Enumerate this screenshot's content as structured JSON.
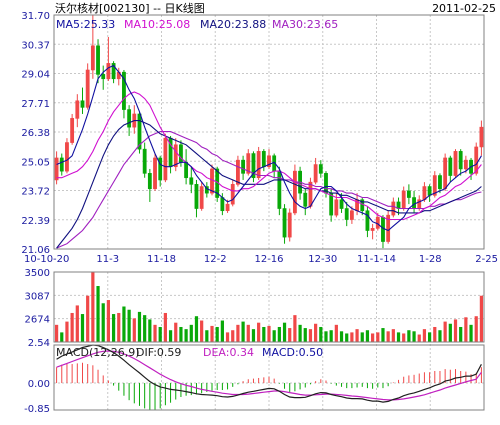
{
  "chart_data": {
    "type": "candlestick",
    "title": "沃尔核材[002130] -- 日K线图",
    "date": "2011-02-25",
    "colors": {
      "up": "#f04848",
      "down": "#08a808",
      "ma5": "#1010a0",
      "ma10": "#d010d0",
      "ma20": "#101080",
      "ma30": "#a020c0",
      "dif": "#202020",
      "dea": "#c020c0",
      "grid": "#c8c8c8",
      "axis": "#1a1aa0"
    },
    "price_panel": {
      "ylim": [
        21.06,
        31.7
      ],
      "yticks": [
        "31.70",
        "30.37",
        "29.04",
        "27.71",
        "26.38",
        "25.05",
        "23.72",
        "22.39",
        "21.06"
      ],
      "xticks": [
        "10-10-20",
        "11-3",
        "11-18",
        "12-2",
        "12-16",
        "12-30",
        "11-1-14",
        "1-28",
        "2-25"
      ],
      "legend": [
        {
          "key": "ma5",
          "label": "MA5:25.33"
        },
        {
          "key": "ma10",
          "label": "MA10:25.08"
        },
        {
          "key": "ma20",
          "label": "MA20:23.88"
        },
        {
          "key": "ma30",
          "label": "MA30:23.65"
        }
      ],
      "candles": [
        [
          24.2,
          25.5,
          24.0,
          25.2
        ],
        [
          25.2,
          25.4,
          24.4,
          24.6
        ],
        [
          24.6,
          26.1,
          24.5,
          25.9
        ],
        [
          25.9,
          27.2,
          25.8,
          27.0
        ],
        [
          27.0,
          28.1,
          26.6,
          27.8
        ],
        [
          27.8,
          28.4,
          27.2,
          27.5
        ],
        [
          27.5,
          29.5,
          27.4,
          29.2
        ],
        [
          29.2,
          31.7,
          28.8,
          30.3
        ],
        [
          30.3,
          30.6,
          28.6,
          29.0
        ],
        [
          29.0,
          29.4,
          28.3,
          28.8
        ],
        [
          28.8,
          30.7,
          28.7,
          29.5
        ],
        [
          29.5,
          29.6,
          28.6,
          28.8
        ],
        [
          28.8,
          29.3,
          28.5,
          29.1
        ],
        [
          29.1,
          29.2,
          27.0,
          27.4
        ],
        [
          27.4,
          27.6,
          26.2,
          26.6
        ],
        [
          26.6,
          27.6,
          26.3,
          27.2
        ],
        [
          27.2,
          27.3,
          25.4,
          25.6
        ],
        [
          25.6,
          25.9,
          24.3,
          24.5
        ],
        [
          24.5,
          24.7,
          23.2,
          23.8
        ],
        [
          23.8,
          25.4,
          23.7,
          25.2
        ],
        [
          25.2,
          25.3,
          23.9,
          24.2
        ],
        [
          24.2,
          26.3,
          24.1,
          26.1
        ],
        [
          26.1,
          26.2,
          24.5,
          24.8
        ],
        [
          24.8,
          26.1,
          24.6,
          25.8
        ],
        [
          25.8,
          26.0,
          24.8,
          25.0
        ],
        [
          25.0,
          25.6,
          24.0,
          24.3
        ],
        [
          24.3,
          24.8,
          23.6,
          24.0
        ],
        [
          24.0,
          24.2,
          22.5,
          22.9
        ],
        [
          22.9,
          24.1,
          22.8,
          23.9
        ],
        [
          23.9,
          24.1,
          23.4,
          23.6
        ],
        [
          23.6,
          24.9,
          23.5,
          24.7
        ],
        [
          24.7,
          24.8,
          23.2,
          23.4
        ],
        [
          23.4,
          23.6,
          22.6,
          22.8
        ],
        [
          22.8,
          23.3,
          22.7,
          23.1
        ],
        [
          23.1,
          24.2,
          23.0,
          24.0
        ],
        [
          24.0,
          25.3,
          23.9,
          25.1
        ],
        [
          25.1,
          25.3,
          24.2,
          24.5
        ],
        [
          24.5,
          25.6,
          24.4,
          25.4
        ],
        [
          25.4,
          25.5,
          24.1,
          24.3
        ],
        [
          24.3,
          25.7,
          24.2,
          25.5
        ],
        [
          25.5,
          25.6,
          24.6,
          24.8
        ],
        [
          24.8,
          25.6,
          24.7,
          25.3
        ],
        [
          25.3,
          25.4,
          24.3,
          24.6
        ],
        [
          24.6,
          24.8,
          22.6,
          22.9
        ],
        [
          22.9,
          23.1,
          21.3,
          21.6
        ],
        [
          21.6,
          22.9,
          21.4,
          22.7
        ],
        [
          22.7,
          24.9,
          22.6,
          24.6
        ],
        [
          24.6,
          24.8,
          23.3,
          23.6
        ],
        [
          23.6,
          23.8,
          22.6,
          23.0
        ],
        [
          23.0,
          24.3,
          22.9,
          24.1
        ],
        [
          24.1,
          25.2,
          24.0,
          24.9
        ],
        [
          24.9,
          25.1,
          24.3,
          24.5
        ],
        [
          24.5,
          24.6,
          23.4,
          23.6
        ],
        [
          23.6,
          23.8,
          22.3,
          22.6
        ],
        [
          22.6,
          23.6,
          22.5,
          23.3
        ],
        [
          23.3,
          23.6,
          22.7,
          22.9
        ],
        [
          22.9,
          23.2,
          22.1,
          22.4
        ],
        [
          22.4,
          23.0,
          22.2,
          22.8
        ],
        [
          22.8,
          23.6,
          22.6,
          23.3
        ],
        [
          23.3,
          23.4,
          22.6,
          22.8
        ],
        [
          22.8,
          23.0,
          21.6,
          21.9
        ],
        [
          21.9,
          22.2,
          21.5,
          22.0
        ],
        [
          22.0,
          22.7,
          21.9,
          22.5
        ],
        [
          22.5,
          22.6,
          21.1,
          21.4
        ],
        [
          21.4,
          22.8,
          21.3,
          22.6
        ],
        [
          22.6,
          23.4,
          22.5,
          23.2
        ],
        [
          23.2,
          23.4,
          22.6,
          22.9
        ],
        [
          22.9,
          23.9,
          22.8,
          23.7
        ],
        [
          23.7,
          24.0,
          23.1,
          23.4
        ],
        [
          23.4,
          23.7,
          22.7,
          22.9
        ],
        [
          22.9,
          23.5,
          22.8,
          23.3
        ],
        [
          23.3,
          24.1,
          23.2,
          23.9
        ],
        [
          23.9,
          24.0,
          23.2,
          23.5
        ],
        [
          23.5,
          24.6,
          23.4,
          24.4
        ],
        [
          24.4,
          24.5,
          23.6,
          23.8
        ],
        [
          23.8,
          25.4,
          23.7,
          25.2
        ],
        [
          25.2,
          25.3,
          24.1,
          24.4
        ],
        [
          24.4,
          25.6,
          24.3,
          25.5
        ],
        [
          25.5,
          25.6,
          24.4,
          24.7
        ],
        [
          24.7,
          25.3,
          24.5,
          25.1
        ],
        [
          25.1,
          25.2,
          24.2,
          24.5
        ],
        [
          24.5,
          25.9,
          24.4,
          25.7
        ],
        [
          25.7,
          26.9,
          25.3,
          26.6
        ]
      ],
      "ma5": [
        24.9,
        25.0,
        25.1,
        25.3,
        25.9,
        26.5,
        27.2,
        28.0,
        28.8,
        29.1,
        29.3,
        29.4,
        29.1,
        28.8,
        28.3,
        27.9,
        27.3,
        26.6,
        26.0,
        25.4,
        24.9,
        24.8,
        24.8,
        24.9,
        25.0,
        25.0,
        24.8,
        24.4,
        24.1,
        23.8,
        23.7,
        23.6,
        23.4,
        23.2,
        23.3,
        23.6,
        23.9,
        24.2,
        24.5,
        24.7,
        24.8,
        24.9,
        25.0,
        24.7,
        24.1,
        23.6,
        23.2,
        23.0,
        22.9,
        23.0,
        23.4,
        23.8,
        23.9,
        23.9,
        23.7,
        23.4,
        23.1,
        22.9,
        22.8,
        22.7,
        22.6,
        22.3,
        22.2,
        22.0,
        21.9,
        22.1,
        22.3,
        22.5,
        22.9,
        23.1,
        23.2,
        23.3,
        23.5,
        23.6,
        23.7,
        23.8,
        24.1,
        24.3,
        24.5,
        24.6,
        24.8,
        24.9,
        25.3
      ],
      "ma10": [
        24.3,
        24.3,
        24.4,
        24.5,
        24.6,
        24.8,
        25.1,
        25.5,
        26.0,
        26.4,
        26.9,
        27.3,
        27.6,
        27.9,
        28.1,
        28.2,
        28.1,
        27.9,
        27.6,
        27.1,
        26.6,
        26.2,
        25.8,
        25.5,
        25.2,
        25.0,
        24.8,
        24.6,
        24.5,
        24.3,
        24.2,
        24.1,
        23.9,
        23.8,
        23.7,
        23.7,
        23.8,
        23.8,
        23.9,
        24.1,
        24.3,
        24.5,
        24.6,
        24.6,
        24.5,
        24.3,
        24.1,
        24.0,
        23.9,
        23.8,
        23.8,
        23.7,
        23.6,
        23.5,
        23.4,
        23.4,
        23.4,
        23.3,
        23.2,
        23.1,
        23.0,
        22.8,
        22.6,
        22.5,
        22.4,
        22.4,
        22.4,
        22.4,
        22.5,
        22.6,
        22.7,
        22.9,
        23.0,
        23.2,
        23.4,
        23.5,
        23.7,
        23.9,
        24.0,
        24.2,
        24.4,
        24.6,
        24.9
      ],
      "ma20": [
        21.1,
        21.4,
        21.7,
        22.0,
        22.4,
        22.9,
        23.5,
        24.1,
        24.7,
        25.3,
        25.8,
        26.2,
        26.5,
        26.7,
        26.8,
        26.9,
        26.9,
        26.8,
        26.7,
        26.5,
        26.3,
        26.2,
        26.1,
        26.0,
        25.9,
        25.8,
        25.6,
        25.4,
        25.2,
        25.0,
        24.8,
        24.6,
        24.4,
        24.3,
        24.2,
        24.1,
        24.0,
        24.0,
        24.0,
        24.0,
        24.0,
        24.1,
        24.2,
        24.2,
        24.2,
        24.1,
        24.0,
        23.9,
        23.8,
        23.8,
        23.8,
        23.7,
        23.7,
        23.6,
        23.6,
        23.5,
        23.5,
        23.4,
        23.3,
        23.2,
        23.2,
        23.1,
        23.0,
        22.9,
        22.8,
        22.8,
        22.7,
        22.7,
        22.7,
        22.7,
        22.7,
        22.8,
        22.8,
        22.9,
        23.0,
        23.1,
        23.2,
        23.3,
        23.4,
        23.5,
        23.6,
        23.7,
        23.9
      ],
      "ma30": [
        21.1,
        21.2,
        21.3,
        21.5,
        21.7,
        21.9,
        22.2,
        22.5,
        22.9,
        23.3,
        23.7,
        24.1,
        24.5,
        24.9,
        25.2,
        25.5,
        25.8,
        26.0,
        26.2,
        26.3,
        26.4,
        26.4,
        26.4,
        26.3,
        26.2,
        26.1,
        26.0,
        25.9,
        25.7,
        25.6,
        25.4,
        25.3,
        25.1,
        25.0,
        24.9,
        24.8,
        24.7,
        24.6,
        24.5,
        24.4,
        24.4,
        24.4,
        24.3,
        24.3,
        24.2,
        24.2,
        24.1,
        24.1,
        24.0,
        24.0,
        23.9,
        23.9,
        23.8,
        23.8,
        23.7,
        23.7,
        23.6,
        23.6,
        23.5,
        23.4,
        23.4,
        23.3,
        23.2,
        23.1,
        23.0,
        23.0,
        22.9,
        22.9,
        22.9,
        22.9,
        22.9,
        22.9,
        23.0,
        23.0,
        23.1,
        23.1,
        23.2,
        23.3,
        23.3,
        23.4,
        23.5,
        23.6,
        23.65
      ]
    },
    "volume_panel": {
      "ylim": [
        2.54,
        35.0
      ],
      "yticks": [
        "3500",
        "3087",
        "2674",
        "2.54"
      ],
      "values": [
        10.5,
        7.0,
        12.0,
        16.0,
        19.5,
        15.5,
        24.0,
        35.0,
        28.5,
        20.5,
        22.0,
        15.5,
        16.0,
        19.0,
        17.5,
        13.5,
        16.5,
        15.0,
        13.0,
        10.5,
        9.5,
        16.0,
        8.0,
        11.5,
        9.5,
        8.5,
        10.5,
        14.5,
        12.5,
        8.0,
        10.0,
        9.5,
        12.5,
        7.0,
        8.0,
        10.5,
        12.0,
        10.5,
        8.5,
        11.5,
        9.5,
        10.0,
        8.0,
        9.5,
        11.5,
        9.0,
        15.0,
        10.5,
        9.0,
        8.5,
        11.0,
        9.5,
        7.5,
        8.0,
        10.5,
        7.5,
        6.5,
        7.0,
        8.5,
        7.0,
        8.0,
        6.5,
        7.0,
        9.0,
        7.5,
        8.5,
        7.0,
        6.5,
        8.0,
        7.5,
        6.0,
        8.5,
        7.0,
        9.5,
        8.0,
        12.0,
        11.0,
        13.0,
        9.5,
        14.0,
        10.5,
        14.5,
        24.0
      ]
    },
    "macd_panel": {
      "ylim": [
        -0.85,
        1.2
      ],
      "yticks": [
        "0.00",
        "-0.85"
      ],
      "legend": [
        {
          "key": "macd_title",
          "label": "MACD(12,26,9)"
        },
        {
          "key": "dif",
          "label": "DIF:0.59"
        },
        {
          "key": "dea",
          "label": "DEA:0.34"
        },
        {
          "key": "macd",
          "label": "MACD:0.50"
        }
      ],
      "dif": [
        0.75,
        0.85,
        0.92,
        0.98,
        1.05,
        1.12,
        1.16,
        1.2,
        1.18,
        1.12,
        1.05,
        0.96,
        0.85,
        0.72,
        0.58,
        0.45,
        0.32,
        0.18,
        0.05,
        -0.05,
        -0.12,
        -0.16,
        -0.2,
        -0.22,
        -0.24,
        -0.27,
        -0.3,
        -0.34,
        -0.36,
        -0.37,
        -0.38,
        -0.4,
        -0.43,
        -0.44,
        -0.42,
        -0.38,
        -0.33,
        -0.29,
        -0.26,
        -0.23,
        -0.2,
        -0.17,
        -0.18,
        -0.26,
        -0.36,
        -0.44,
        -0.46,
        -0.46,
        -0.45,
        -0.4,
        -0.34,
        -0.3,
        -0.31,
        -0.36,
        -0.4,
        -0.43,
        -0.47,
        -0.49,
        -0.49,
        -0.5,
        -0.54,
        -0.57,
        -0.57,
        -0.6,
        -0.58,
        -0.52,
        -0.47,
        -0.4,
        -0.35,
        -0.31,
        -0.26,
        -0.2,
        -0.15,
        -0.08,
        -0.03,
        0.06,
        0.1,
        0.16,
        0.18,
        0.22,
        0.22,
        0.28,
        0.59
      ],
      "dea": [
        0.5,
        0.56,
        0.62,
        0.68,
        0.74,
        0.8,
        0.86,
        0.92,
        0.97,
        1.0,
        1.01,
        1.0,
        0.97,
        0.92,
        0.85,
        0.77,
        0.68,
        0.58,
        0.48,
        0.38,
        0.28,
        0.19,
        0.11,
        0.04,
        -0.02,
        -0.07,
        -0.11,
        -0.16,
        -0.2,
        -0.23,
        -0.26,
        -0.29,
        -0.32,
        -0.34,
        -0.36,
        -0.36,
        -0.36,
        -0.35,
        -0.33,
        -0.31,
        -0.29,
        -0.27,
        -0.25,
        -0.25,
        -0.27,
        -0.3,
        -0.33,
        -0.36,
        -0.38,
        -0.38,
        -0.37,
        -0.36,
        -0.35,
        -0.35,
        -0.36,
        -0.37,
        -0.39,
        -0.41,
        -0.42,
        -0.44,
        -0.46,
        -0.48,
        -0.5,
        -0.52,
        -0.53,
        -0.53,
        -0.52,
        -0.5,
        -0.47,
        -0.44,
        -0.41,
        -0.37,
        -0.32,
        -0.27,
        -0.22,
        -0.16,
        -0.11,
        -0.06,
        -0.01,
        0.04,
        0.08,
        0.12,
        0.34
      ]
    }
  }
}
